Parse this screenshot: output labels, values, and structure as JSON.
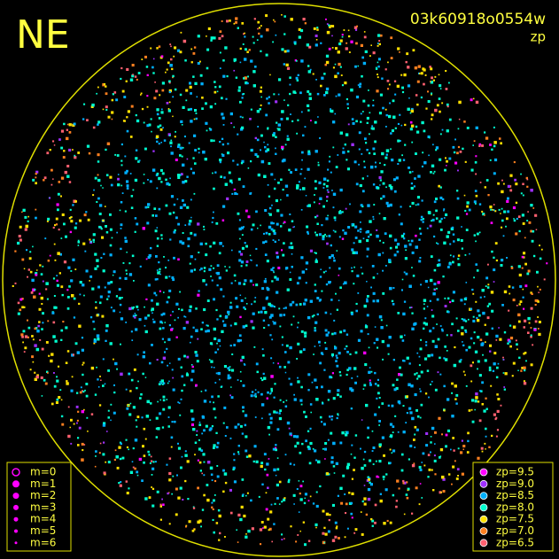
{
  "header": {
    "title": "NE",
    "frame_id": "03k60918o0554w",
    "mode": "zp"
  },
  "magnitude_legend": [
    "m=0",
    "m=1",
    "m=2",
    "m=3",
    "m=4",
    "m=5",
    "m=6"
  ],
  "zp_legend": [
    {
      "label": "zp=9.5",
      "color": "#ff00ff"
    },
    {
      "label": "zp=9.0",
      "color": "#a030ff"
    },
    {
      "label": "zp=8.5",
      "color": "#00b0ff"
    },
    {
      "label": "zp=8.0",
      "color": "#00ffd0"
    },
    {
      "label": "zp=7.5",
      "color": "#ffe000"
    },
    {
      "label": "zp=7.0",
      "color": "#ff8020"
    },
    {
      "label": "zp=6.5",
      "color": "#ff6070"
    }
  ]
}
